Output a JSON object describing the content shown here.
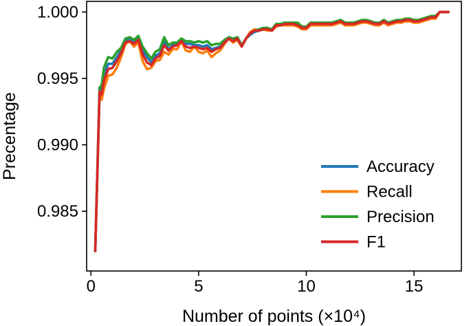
{
  "chart_data": {
    "type": "line",
    "xlabel": "Number of points (×10⁴)",
    "ylabel": "Precentage",
    "xlim": [
      -0.2,
      17.2
    ],
    "ylim": [
      0.9805,
      1.0008
    ],
    "xticks": [
      0,
      5,
      10,
      15
    ],
    "xtick_labels": [
      "0",
      "5",
      "10",
      "15"
    ],
    "yticks": [
      0.985,
      0.99,
      0.995,
      1.0
    ],
    "ytick_labels": [
      "0.985",
      "0.990",
      "0.995",
      "1.000"
    ],
    "grid": false,
    "legend": "bottom-right",
    "x": [
      0.2,
      0.4,
      0.5,
      0.6,
      0.8,
      1.0,
      1.2,
      1.4,
      1.6,
      1.8,
      2.0,
      2.2,
      2.4,
      2.6,
      2.8,
      3.0,
      3.2,
      3.4,
      3.6,
      3.8,
      4.0,
      4.2,
      4.4,
      4.6,
      4.8,
      5.0,
      5.2,
      5.4,
      5.6,
      5.8,
      6.0,
      6.2,
      6.4,
      6.6,
      6.8,
      7.0,
      7.2,
      7.4,
      7.6,
      7.8,
      8.0,
      8.2,
      8.4,
      8.6,
      8.8,
      9.0,
      9.2,
      9.4,
      9.6,
      9.8,
      10.0,
      10.2,
      10.4,
      10.6,
      10.8,
      11.0,
      11.2,
      11.4,
      11.6,
      11.8,
      12.0,
      12.2,
      12.4,
      12.6,
      12.8,
      13.0,
      13.2,
      13.4,
      13.6,
      13.8,
      14.0,
      14.2,
      14.4,
      14.6,
      14.8,
      15.0,
      15.2,
      15.4,
      15.6,
      15.8,
      16.0,
      16.2,
      16.4,
      16.6
    ],
    "series": [
      {
        "name": "Accuracy",
        "color": "#1f77b4",
        "values": [
          0.982,
          0.9941,
          0.9941,
          0.9952,
          0.9961,
          0.9961,
          0.9966,
          0.9971,
          0.9979,
          0.9979,
          0.9977,
          0.998,
          0.9971,
          0.9966,
          0.9962,
          0.9967,
          0.9969,
          0.9978,
          0.9972,
          0.9975,
          0.9976,
          0.9979,
          0.9976,
          0.9976,
          0.9975,
          0.9975,
          0.9974,
          0.9975,
          0.9972,
          0.9973,
          0.9974,
          0.9978,
          0.9981,
          0.9979,
          0.998,
          0.9974,
          0.998,
          0.9983,
          0.9985,
          0.9986,
          0.9987,
          0.9987,
          0.9986,
          0.999,
          0.999,
          0.9991,
          0.9991,
          0.9991,
          0.9991,
          0.9988,
          0.9988,
          0.9991,
          0.9991,
          0.9991,
          0.9991,
          0.9991,
          0.9991,
          0.9992,
          0.9993,
          0.9991,
          0.9991,
          0.9991,
          0.9992,
          0.9993,
          0.9993,
          0.9992,
          0.9991,
          0.9991,
          0.9993,
          0.9991,
          0.9992,
          0.9993,
          0.9993,
          0.9994,
          0.9994,
          0.9993,
          0.9993,
          0.9994,
          0.9995,
          0.9996,
          0.9996,
          1.0,
          1.0,
          1.0
        ]
      },
      {
        "name": "Recall",
        "color": "#ff7f0e",
        "values": [
          0.982,
          0.9938,
          0.9934,
          0.9942,
          0.9952,
          0.9953,
          0.9958,
          0.9966,
          0.9976,
          0.9978,
          0.9974,
          0.9977,
          0.9963,
          0.9957,
          0.9958,
          0.9963,
          0.9964,
          0.997,
          0.9968,
          0.9972,
          0.9972,
          0.9978,
          0.9971,
          0.997,
          0.9974,
          0.997,
          0.9969,
          0.9971,
          0.9966,
          0.9969,
          0.9971,
          0.9976,
          0.998,
          0.9977,
          0.9979,
          0.9974,
          0.998,
          0.9985,
          0.9987,
          0.9986,
          0.9987,
          0.9986,
          0.9986,
          0.9989,
          0.999,
          0.999,
          0.999,
          0.999,
          0.9989,
          0.9987,
          0.9987,
          0.999,
          0.999,
          0.999,
          0.999,
          0.999,
          0.999,
          0.9991,
          0.9992,
          0.999,
          0.999,
          0.999,
          0.9991,
          0.9992,
          0.9992,
          0.9991,
          0.999,
          0.999,
          0.9992,
          0.999,
          0.9991,
          0.9992,
          0.9992,
          0.9993,
          0.9993,
          0.9992,
          0.9992,
          0.9993,
          0.9994,
          0.9995,
          0.9995,
          1.0,
          1.0,
          1.0
        ]
      },
      {
        "name": "Precision",
        "color": "#2ca02c",
        "values": [
          0.982,
          0.9943,
          0.9945,
          0.9958,
          0.9966,
          0.9965,
          0.997,
          0.9973,
          0.998,
          0.9981,
          0.9979,
          0.9982,
          0.9974,
          0.9969,
          0.9965,
          0.997,
          0.9972,
          0.9981,
          0.9975,
          0.9977,
          0.9977,
          0.998,
          0.9978,
          0.9978,
          0.9977,
          0.9978,
          0.9977,
          0.9978,
          0.9975,
          0.9976,
          0.9976,
          0.9979,
          0.9981,
          0.998,
          0.9981,
          0.9975,
          0.998,
          0.9984,
          0.9986,
          0.9987,
          0.9988,
          0.9988,
          0.9987,
          0.9991,
          0.9991,
          0.9992,
          0.9992,
          0.9992,
          0.9992,
          0.9989,
          0.9989,
          0.9992,
          0.9992,
          0.9992,
          0.9992,
          0.9992,
          0.9992,
          0.9993,
          0.9994,
          0.9992,
          0.9992,
          0.9992,
          0.9993,
          0.9994,
          0.9994,
          0.9993,
          0.9992,
          0.9992,
          0.9994,
          0.9992,
          0.9993,
          0.9994,
          0.9994,
          0.9995,
          0.9995,
          0.9994,
          0.9994,
          0.9995,
          0.9996,
          0.9997,
          0.9997,
          1.0,
          1.0,
          1.0
        ]
      },
      {
        "name": "F1",
        "color": "#d62728",
        "values": [
          0.982,
          0.994,
          0.9938,
          0.9948,
          0.9957,
          0.9958,
          0.9963,
          0.9969,
          0.9977,
          0.9978,
          0.9976,
          0.9979,
          0.9968,
          0.9962,
          0.996,
          0.9965,
          0.9967,
          0.9975,
          0.9971,
          0.9974,
          0.9975,
          0.9978,
          0.9974,
          0.9973,
          0.9974,
          0.9973,
          0.9972,
          0.9973,
          0.997,
          0.9972,
          0.9973,
          0.9977,
          0.998,
          0.9978,
          0.998,
          0.9974,
          0.998,
          0.9984,
          0.9986,
          0.9986,
          0.9987,
          0.9987,
          0.9986,
          0.999,
          0.999,
          0.9991,
          0.9991,
          0.9991,
          0.999,
          0.9988,
          0.9988,
          0.9991,
          0.9991,
          0.9991,
          0.9991,
          0.9991,
          0.9991,
          0.9992,
          0.9993,
          0.9991,
          0.9991,
          0.9991,
          0.9992,
          0.9993,
          0.9993,
          0.9992,
          0.9991,
          0.9991,
          0.9993,
          0.9991,
          0.9992,
          0.9993,
          0.9993,
          0.9994,
          0.9994,
          0.9993,
          0.9993,
          0.9994,
          0.9995,
          0.9996,
          0.9996,
          1.0,
          1.0,
          1.0
        ]
      }
    ]
  }
}
